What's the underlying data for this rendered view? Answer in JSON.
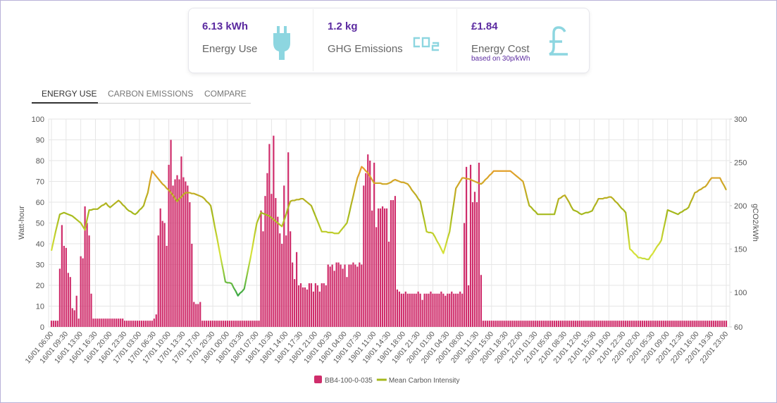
{
  "cards": [
    {
      "value": "6.13 kWh",
      "label": "Energy Use"
    },
    {
      "value": "1.2 kg",
      "label": "GHG Emissions"
    },
    {
      "value": "£1.84",
      "label": "Energy Cost",
      "note": "based on 30p/kWh"
    }
  ],
  "tabs": [
    "ENERGY USE",
    "CARBON EMISSIONS",
    "COMPARE"
  ],
  "chart_data": {
    "type": "combo",
    "ylabel": "Watt-hour",
    "y2label": "gCO2/kWh",
    "ylim": [
      0,
      100
    ],
    "yticks": [
      0,
      10,
      20,
      30,
      40,
      50,
      60,
      70,
      80,
      90,
      100
    ],
    "y2lim": [
      60,
      300
    ],
    "y2ticks": [
      60,
      100,
      150,
      200,
      250,
      300
    ],
    "grid": true,
    "legend": "bottom",
    "categories": [
      "16/01 06:00",
      null,
      null,
      null,
      null,
      null,
      null,
      "16/01 09:30",
      null,
      null,
      null,
      null,
      null,
      null,
      "16/01 13:00",
      null,
      null,
      null,
      null,
      null,
      null,
      "16/01 16:30",
      null,
      null,
      null,
      null,
      null,
      null,
      "16/01 20:00",
      null,
      null,
      null,
      null,
      null,
      null,
      "16/01 23:30",
      null,
      null,
      null,
      null,
      null,
      null,
      "17/01 03:00",
      null,
      null,
      null,
      null,
      null,
      null,
      "17/01 06:30",
      null,
      null,
      null,
      null,
      null,
      null,
      "17/01 10:00",
      null,
      null,
      null,
      null,
      null,
      null,
      "17/01 13:30",
      null,
      null,
      null,
      null,
      null,
      null,
      "17/01 17:00",
      null,
      null,
      null,
      null,
      null,
      null,
      "17/01 20:30",
      null,
      null,
      null,
      null,
      null,
      null,
      "18/01 00:00",
      null,
      null,
      null,
      null,
      null,
      null,
      "18/01 03:30",
      null,
      null,
      null,
      null,
      null,
      null,
      "18/01 07:00",
      null,
      null,
      null,
      null,
      null,
      null,
      "18/01 10:30",
      null,
      null,
      null,
      null,
      null,
      null,
      "18/01 14:00",
      null,
      null,
      null,
      null,
      null,
      null,
      "18/01 17:30",
      null,
      null,
      null,
      null,
      null,
      null,
      "18/01 21:00",
      null,
      null,
      null,
      null,
      null,
      null,
      "19/01 00:30",
      null,
      null,
      null,
      null,
      null,
      null,
      "19/01 04:00",
      null,
      null,
      null,
      null,
      null,
      null,
      "19/01 07:30",
      null,
      null,
      null,
      null,
      null,
      null,
      "19/01 11:00",
      null,
      null,
      null,
      null,
      null,
      null,
      "19/01 14:30",
      null,
      null,
      null,
      null,
      null,
      null,
      "19/01 18:00",
      null,
      null,
      null,
      null,
      null,
      null,
      "19/01 21:30",
      null,
      null,
      null,
      null,
      null,
      null,
      "20/01 01:00",
      null,
      null,
      null,
      null,
      null,
      null,
      "20/01 04:30",
      null,
      null,
      null,
      null,
      null,
      null,
      "20/01 08:00",
      null,
      null,
      null,
      null,
      null,
      null,
      "20/01 11:30",
      null,
      null,
      null,
      null,
      null,
      null,
      "20/01 15:00",
      null,
      null,
      null,
      null,
      null,
      null,
      "20/01 18:30",
      null,
      null,
      null,
      null,
      null,
      null,
      "20/01 22:00",
      null,
      null,
      null,
      null,
      null,
      null,
      "21/01 01:30",
      null,
      null,
      null,
      null,
      null,
      null,
      "21/01 05:00",
      null,
      null,
      null,
      null,
      null,
      null,
      "21/01 08:30",
      null,
      null,
      null,
      null,
      null,
      null,
      "21/01 12:00",
      null,
      null,
      null,
      null,
      null,
      null,
      "21/01 15:30",
      null,
      null,
      null,
      null,
      null,
      null,
      "21/01 19:00",
      null,
      null,
      null,
      null,
      null,
      null,
      "21/01 22:30",
      null,
      null,
      null,
      null,
      null,
      null,
      "22/01 02:00",
      null,
      null,
      null,
      null,
      null,
      null,
      "22/01 05:30",
      null,
      null,
      null,
      null,
      null,
      null,
      "22/01 09:00",
      null,
      null,
      null,
      null,
      null,
      null,
      "22/01 12:30",
      null,
      null,
      null,
      null,
      null,
      null,
      "22/01 16:00",
      null,
      null,
      null,
      null,
      null,
      null,
      "22/01 19:30",
      null,
      null,
      null,
      null,
      null,
      null,
      "22/01 23:00"
    ],
    "series": [
      {
        "name": "BB4-100-0-035",
        "type": "bar",
        "color": "#cf2d6b",
        "values": [
          3,
          3,
          3,
          3,
          28,
          49,
          39,
          38,
          26,
          24,
          9,
          8,
          15,
          4,
          34,
          33,
          58,
          50,
          44,
          16,
          4,
          4,
          4,
          4,
          4,
          4,
          4,
          4,
          4,
          4,
          4,
          4,
          4,
          4,
          4,
          3,
          3,
          3,
          3,
          3,
          3,
          3,
          3,
          3,
          3,
          3,
          3,
          3,
          3,
          4,
          6,
          44,
          57,
          51,
          50,
          39,
          78,
          90,
          68,
          71,
          73,
          71,
          82,
          72,
          70,
          68,
          60,
          40,
          12,
          11,
          11,
          12,
          3,
          3,
          3,
          3,
          3,
          3,
          3,
          3,
          3,
          3,
          3,
          3,
          3,
          3,
          3,
          3,
          3,
          3,
          3,
          3,
          3,
          3,
          3,
          3,
          3,
          3,
          3,
          3,
          56,
          46,
          63,
          74,
          88,
          64,
          92,
          62,
          53,
          45,
          40,
          68,
          44,
          84,
          46,
          31,
          23,
          36,
          20,
          21,
          19,
          19,
          18,
          21,
          21,
          17,
          21,
          20,
          17,
          21,
          21,
          20,
          30,
          29,
          30,
          27,
          31,
          31,
          30,
          28,
          30,
          24,
          30,
          30,
          31,
          30,
          29,
          31,
          30,
          68,
          74,
          83,
          80,
          56,
          79,
          48,
          57,
          57,
          58,
          57,
          57,
          41,
          61,
          61,
          63,
          18,
          17,
          16,
          16,
          17,
          16,
          16,
          16,
          16,
          16,
          17,
          16,
          13,
          16,
          16,
          16,
          17,
          16,
          16,
          16,
          16,
          17,
          16,
          15,
          16,
          16,
          17,
          16,
          16,
          16,
          17,
          16,
          50,
          77,
          20,
          78,
          60,
          65,
          60,
          79,
          25,
          3,
          3,
          3,
          3,
          3,
          3,
          3,
          3,
          3,
          3,
          3,
          3,
          3,
          3,
          3,
          3,
          3,
          3,
          3,
          3,
          3,
          3,
          3,
          3,
          3,
          3,
          3,
          3,
          3,
          3,
          3,
          3,
          3,
          3,
          3,
          3,
          3,
          3,
          3,
          3,
          3,
          3,
          3,
          3,
          3,
          3,
          3,
          3,
          3,
          3,
          3,
          3,
          3,
          3,
          3,
          3,
          3,
          3,
          3,
          3,
          3,
          3,
          3,
          3,
          3,
          3,
          3,
          3,
          3,
          3,
          3,
          3,
          3,
          3,
          3,
          3,
          3,
          3,
          3,
          3,
          3,
          3,
          3,
          3,
          3,
          3,
          3,
          3,
          3,
          3,
          3,
          3,
          3,
          3,
          3,
          3,
          3,
          3,
          3,
          3,
          3,
          3,
          3,
          3,
          3,
          3,
          3,
          3,
          3,
          3,
          3,
          3,
          3,
          3,
          3,
          3,
          3
        ]
      },
      {
        "name": "Mean Carbon Intensity",
        "type": "line",
        "axis": "y2",
        "color": "#a4b81c",
        "values": [
          148,
          159,
          170,
          180,
          190,
          191,
          192,
          191,
          190,
          189,
          188,
          186,
          184,
          182,
          180,
          176,
          172,
          184,
          195,
          195,
          196,
          196,
          196,
          198,
          200,
          201,
          203,
          200,
          198,
          200,
          202,
          204,
          206,
          204,
          201,
          199,
          196,
          194,
          193,
          191,
          190,
          192,
          195,
          197,
          200,
          208,
          215,
          228,
          240,
          237,
          234,
          231,
          228,
          225,
          223,
          220,
          218,
          215,
          212,
          208,
          205,
          208,
          210,
          213,
          215,
          215,
          215,
          214,
          214,
          213,
          212,
          211,
          210,
          208,
          205,
          203,
          200,
          188,
          175,
          163,
          150,
          137,
          125,
          112,
          111,
          111,
          110,
          105,
          101,
          96,
          99,
          101,
          104,
          116,
          128,
          140,
          153,
          167,
          180,
          186,
          192,
          191,
          190,
          189,
          188,
          186,
          184,
          182,
          180,
          178,
          176,
          183,
          190,
          198,
          205,
          206,
          206,
          207,
          207,
          208,
          208,
          206,
          204,
          202,
          200,
          194,
          188,
          182,
          176,
          170,
          170,
          170,
          169,
          169,
          169,
          168,
          168,
          168,
          171,
          174,
          177,
          180,
          190,
          201,
          211,
          222,
          232,
          238,
          245,
          243,
          240,
          238,
          234,
          230,
          226,
          226,
          226,
          226,
          225,
          225,
          225,
          226,
          227,
          229,
          230,
          229,
          228,
          227,
          227,
          226,
          225,
          222,
          218,
          215,
          212,
          208,
          205,
          193,
          182,
          170,
          169,
          169,
          168,
          164,
          159,
          155,
          150,
          145,
          153,
          162,
          170,
          187,
          203,
          220,
          224,
          228,
          232,
          232,
          231,
          231,
          230,
          229,
          228,
          227,
          226,
          225,
          227,
          230,
          232,
          235,
          237,
          240,
          240,
          240,
          240,
          240,
          240,
          240,
          240,
          240,
          238,
          236,
          234,
          232,
          230,
          228,
          219,
          209,
          200,
          198,
          195,
          193,
          190,
          190,
          190,
          190,
          190,
          190,
          190,
          190,
          190,
          199,
          208,
          209,
          211,
          212,
          208,
          204,
          199,
          195,
          194,
          193,
          191,
          190,
          191,
          192,
          192,
          193,
          194,
          199,
          203,
          208,
          208,
          208,
          209,
          209,
          210,
          210,
          208,
          205,
          203,
          200,
          197,
          195,
          192,
          171,
          150,
          148,
          145,
          143,
          140,
          140,
          139,
          139,
          138,
          138,
          142,
          145,
          149,
          153,
          156,
          160,
          172,
          183,
          195,
          194,
          193,
          192,
          191,
          190,
          192,
          193,
          195,
          196,
          198,
          204,
          209,
          215,
          216,
          218,
          219,
          221,
          222,
          225,
          229,
          232,
          232,
          232,
          232,
          232,
          227,
          223,
          218
        ]
      }
    ]
  }
}
